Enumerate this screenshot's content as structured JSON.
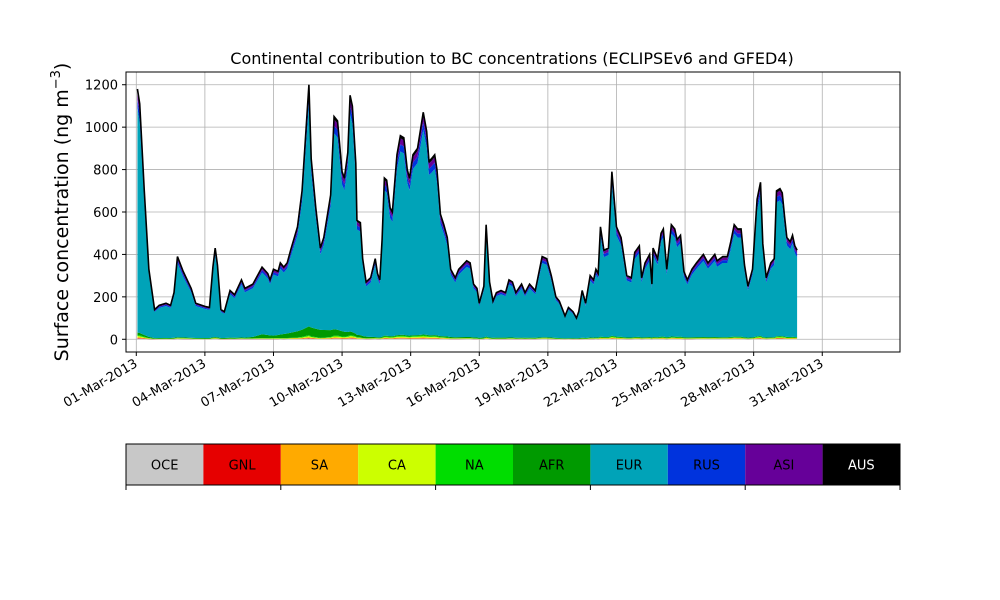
{
  "chart_data": {
    "type": "area",
    "title": "Continental contribution to BC concentrations (ECLIPSEv6 and GFED4)",
    "ylabel": "Surface concentration (ng m",
    "ylabel_superscript": "−3",
    "ylabel_close": ")",
    "xlabel": "",
    "ylim": [
      -60,
      1260
    ],
    "xlim": [
      -0.45,
      33.4
    ],
    "grid": true,
    "y_ticks": [
      0,
      200,
      400,
      600,
      800,
      1000,
      1200
    ],
    "x_ticks": [
      {
        "day": 0,
        "label": "01-Mar-2013"
      },
      {
        "day": 3,
        "label": "04-Mar-2013"
      },
      {
        "day": 6,
        "label": "07-Mar-2013"
      },
      {
        "day": 9,
        "label": "10-Mar-2013"
      },
      {
        "day": 12,
        "label": "13-Mar-2013"
      },
      {
        "day": 15,
        "label": "16-Mar-2013"
      },
      {
        "day": 18,
        "label": "19-Mar-2013"
      },
      {
        "day": 21,
        "label": "22-Mar-2013"
      },
      {
        "day": 24,
        "label": "25-Mar-2013"
      },
      {
        "day": 27,
        "label": "28-Mar-2013"
      },
      {
        "day": 30,
        "label": "31-Mar-2013"
      }
    ],
    "x_unit": "days after 01-Mar-2013",
    "legend_placement": "colorbar below plot",
    "regions": [
      {
        "name": "OCE",
        "color": "#c8c8c8",
        "text_color": "#000000"
      },
      {
        "name": "GNL",
        "color": "#e60000",
        "text_color": "#000000"
      },
      {
        "name": "SA",
        "color": "#ffaa00",
        "text_color": "#000000"
      },
      {
        "name": "CA",
        "color": "#ccff00",
        "text_color": "#000000"
      },
      {
        "name": "NA",
        "color": "#00dd00",
        "text_color": "#000000"
      },
      {
        "name": "AFR",
        "color": "#009a00",
        "text_color": "#000000"
      },
      {
        "name": "EUR",
        "color": "#00a3b8",
        "text_color": "#000000"
      },
      {
        "name": "RUS",
        "color": "#0033dd",
        "text_color": "#000000"
      },
      {
        "name": "ASI",
        "color": "#660099",
        "text_color": "#000000"
      },
      {
        "name": "AUS",
        "color": "#000000",
        "text_color": "#ffffff"
      }
    ],
    "total": [
      [
        0.05,
        1180
      ],
      [
        0.15,
        1110
      ],
      [
        0.35,
        700
      ],
      [
        0.55,
        330
      ],
      [
        0.8,
        140
      ],
      [
        1.0,
        160
      ],
      [
        1.3,
        170
      ],
      [
        1.5,
        160
      ],
      [
        1.65,
        220
      ],
      [
        1.8,
        390
      ],
      [
        2.05,
        320
      ],
      [
        2.4,
        240
      ],
      [
        2.6,
        170
      ],
      [
        3.0,
        155
      ],
      [
        3.2,
        150
      ],
      [
        3.35,
        340
      ],
      [
        3.45,
        430
      ],
      [
        3.55,
        350
      ],
      [
        3.7,
        140
      ],
      [
        3.85,
        130
      ],
      [
        4.1,
        230
      ],
      [
        4.3,
        210
      ],
      [
        4.6,
        280
      ],
      [
        4.75,
        240
      ],
      [
        5.1,
        260
      ],
      [
        5.5,
        340
      ],
      [
        5.75,
        310
      ],
      [
        5.85,
        280
      ],
      [
        6.0,
        330
      ],
      [
        6.2,
        320
      ],
      [
        6.3,
        360
      ],
      [
        6.45,
        340
      ],
      [
        6.6,
        360
      ],
      [
        6.75,
        420
      ],
      [
        7.05,
        530
      ],
      [
        7.25,
        700
      ],
      [
        7.55,
        1200
      ],
      [
        7.65,
        850
      ],
      [
        7.85,
        620
      ],
      [
        8.05,
        430
      ],
      [
        8.2,
        480
      ],
      [
        8.5,
        680
      ],
      [
        8.65,
        1050
      ],
      [
        8.8,
        1030
      ],
      [
        9.0,
        790
      ],
      [
        9.1,
        760
      ],
      [
        9.25,
        880
      ],
      [
        9.35,
        1150
      ],
      [
        9.45,
        1100
      ],
      [
        9.6,
        830
      ],
      [
        9.65,
        560
      ],
      [
        9.8,
        550
      ],
      [
        9.9,
        380
      ],
      [
        10.05,
        270
      ],
      [
        10.25,
        290
      ],
      [
        10.45,
        380
      ],
      [
        10.55,
        310
      ],
      [
        10.65,
        280
      ],
      [
        10.75,
        470
      ],
      [
        10.85,
        760
      ],
      [
        10.95,
        750
      ],
      [
        11.1,
        620
      ],
      [
        11.2,
        600
      ],
      [
        11.4,
        870
      ],
      [
        11.55,
        960
      ],
      [
        11.7,
        950
      ],
      [
        11.85,
        800
      ],
      [
        11.95,
        760
      ],
      [
        12.1,
        870
      ],
      [
        12.3,
        900
      ],
      [
        12.55,
        1070
      ],
      [
        12.7,
        980
      ],
      [
        12.8,
        840
      ],
      [
        12.9,
        850
      ],
      [
        13.05,
        870
      ],
      [
        13.15,
        800
      ],
      [
        13.3,
        590
      ],
      [
        13.45,
        540
      ],
      [
        13.6,
        480
      ],
      [
        13.75,
        330
      ],
      [
        13.95,
        290
      ],
      [
        14.1,
        330
      ],
      [
        14.45,
        370
      ],
      [
        14.6,
        360
      ],
      [
        14.75,
        260
      ],
      [
        14.9,
        240
      ],
      [
        15.0,
        170
      ],
      [
        15.2,
        250
      ],
      [
        15.3,
        540
      ],
      [
        15.45,
        270
      ],
      [
        15.6,
        180
      ],
      [
        15.75,
        220
      ],
      [
        15.95,
        230
      ],
      [
        16.15,
        220
      ],
      [
        16.3,
        280
      ],
      [
        16.45,
        270
      ],
      [
        16.6,
        220
      ],
      [
        16.85,
        260
      ],
      [
        17.0,
        220
      ],
      [
        17.2,
        260
      ],
      [
        17.45,
        230
      ],
      [
        17.75,
        390
      ],
      [
        17.95,
        380
      ],
      [
        18.15,
        300
      ],
      [
        18.35,
        200
      ],
      [
        18.5,
        180
      ],
      [
        18.75,
        110
      ],
      [
        18.9,
        150
      ],
      [
        19.1,
        130
      ],
      [
        19.25,
        100
      ],
      [
        19.35,
        130
      ],
      [
        19.5,
        230
      ],
      [
        19.65,
        170
      ],
      [
        19.85,
        300
      ],
      [
        20.0,
        280
      ],
      [
        20.1,
        330
      ],
      [
        20.2,
        310
      ],
      [
        20.3,
        530
      ],
      [
        20.45,
        420
      ],
      [
        20.65,
        430
      ],
      [
        20.8,
        790
      ],
      [
        21.0,
        530
      ],
      [
        21.2,
        480
      ],
      [
        21.45,
        300
      ],
      [
        21.65,
        290
      ],
      [
        21.8,
        410
      ],
      [
        22.0,
        440
      ],
      [
        22.1,
        290
      ],
      [
        22.25,
        360
      ],
      [
        22.45,
        400
      ],
      [
        22.55,
        260
      ],
      [
        22.6,
        430
      ],
      [
        22.8,
        380
      ],
      [
        22.95,
        500
      ],
      [
        23.05,
        520
      ],
      [
        23.2,
        330
      ],
      [
        23.4,
        540
      ],
      [
        23.55,
        520
      ],
      [
        23.65,
        470
      ],
      [
        23.8,
        490
      ],
      [
        23.95,
        320
      ],
      [
        24.1,
        280
      ],
      [
        24.3,
        330
      ],
      [
        24.5,
        360
      ],
      [
        24.8,
        400
      ],
      [
        25.0,
        360
      ],
      [
        25.3,
        400
      ],
      [
        25.4,
        370
      ],
      [
        25.65,
        390
      ],
      [
        25.85,
        390
      ],
      [
        26.0,
        460
      ],
      [
        26.15,
        540
      ],
      [
        26.3,
        520
      ],
      [
        26.45,
        520
      ],
      [
        26.6,
        350
      ],
      [
        26.75,
        250
      ],
      [
        26.95,
        330
      ],
      [
        27.15,
        660
      ],
      [
        27.3,
        740
      ],
      [
        27.4,
        450
      ],
      [
        27.55,
        290
      ],
      [
        27.75,
        360
      ],
      [
        27.9,
        380
      ],
      [
        28.0,
        700
      ],
      [
        28.15,
        710
      ],
      [
        28.25,
        690
      ],
      [
        28.35,
        580
      ],
      [
        28.45,
        480
      ],
      [
        28.6,
        460
      ],
      [
        28.7,
        490
      ],
      [
        28.8,
        440
      ],
      [
        28.9,
        420
      ]
    ],
    "stack_fractions": {
      "OCE": 0.003,
      "GNL": 0.002,
      "SA": 0.003,
      "CA": 0.005,
      "NA": 0.004,
      "EUR": 0.905,
      "RUS": 0.035,
      "ASI": 0.03,
      "AUS": 0.013
    },
    "afr_series": [
      [
        0.05,
        12
      ],
      [
        0.8,
        3
      ],
      [
        5.0,
        4
      ],
      [
        5.5,
        18
      ],
      [
        6.0,
        12
      ],
      [
        7.0,
        28
      ],
      [
        7.6,
        42
      ],
      [
        8.3,
        35
      ],
      [
        9.0,
        25
      ],
      [
        9.6,
        12
      ],
      [
        10.5,
        4
      ],
      [
        13.5,
        5
      ],
      [
        18.0,
        3
      ],
      [
        24.0,
        4
      ],
      [
        29.0,
        3
      ]
    ]
  }
}
